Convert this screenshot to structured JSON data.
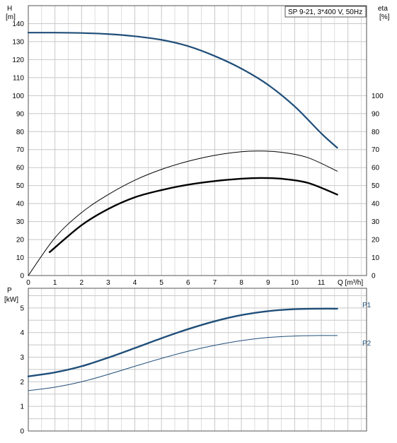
{
  "chart_data": [
    {
      "type": "line",
      "title": "SP 9-21, 3*400 V, 50Hz",
      "xlabel": "Q [m³/h]",
      "ylabel": "H\n[m]",
      "y2label": "eta\n[%]",
      "xlim": [
        0,
        12.7
      ],
      "ylim": [
        0,
        150
      ],
      "y2lim": [
        0,
        150
      ],
      "x_ticks": [
        0,
        1,
        2,
        3,
        4,
        5,
        6,
        7,
        8,
        9,
        10,
        11
      ],
      "y_ticks": [
        0,
        10,
        20,
        30,
        40,
        50,
        60,
        70,
        80,
        90,
        100,
        110,
        120,
        130,
        140
      ],
      "y2_ticks": [
        0,
        10,
        20,
        30,
        40,
        50,
        60,
        70,
        80,
        90,
        100
      ],
      "grid": true,
      "series": [
        {
          "role": "head",
          "color": "#1f4e79",
          "x": [
            0,
            1,
            2,
            3,
            4,
            5,
            6,
            7,
            8,
            9,
            10,
            11,
            11.6
          ],
          "y": [
            135,
            135,
            134.8,
            134.2,
            133,
            131,
            127.5,
            122,
            115,
            106,
            94,
            79,
            71
          ]
        },
        {
          "role": "efficiency",
          "color": "#000000",
          "x": [
            0,
            1,
            2,
            3,
            4,
            5,
            6,
            7,
            8,
            8.7,
            9.5,
            10.5,
            11.6
          ],
          "y": [
            0,
            21,
            35,
            45,
            53,
            59,
            63.5,
            66.8,
            68.8,
            69.2,
            68.5,
            65.5,
            58
          ]
        },
        {
          "role": "efficiency",
          "color": "#000000",
          "x": [
            0.8,
            2,
            3,
            4,
            5,
            6,
            7,
            8,
            8.7,
            9.5,
            10.5,
            11.6
          ],
          "y": [
            13,
            28,
            37,
            43.5,
            47.5,
            50.5,
            52.5,
            53.8,
            54.2,
            53.8,
            51.5,
            45
          ]
        }
      ]
    },
    {
      "type": "line",
      "ylabel": "P\n[kW]",
      "xlim": [
        0,
        12.7
      ],
      "ylim": [
        0,
        5.8
      ],
      "y_ticks": [
        0,
        1,
        2,
        3,
        4,
        5
      ],
      "grid": true,
      "series": [
        {
          "name": "P1",
          "color": "#1f4e79",
          "x": [
            0,
            1,
            2,
            3,
            4,
            5,
            6,
            7,
            8,
            9,
            10,
            11,
            11.6
          ],
          "y": [
            2.22,
            2.38,
            2.63,
            2.98,
            3.37,
            3.77,
            4.14,
            4.46,
            4.71,
            4.87,
            4.95,
            4.97,
            4.97
          ]
        },
        {
          "name": "P2",
          "color": "#1f4e79",
          "x": [
            0,
            1,
            2,
            3,
            4,
            5,
            6,
            7,
            8,
            9,
            10,
            11,
            11.6
          ],
          "y": [
            1.64,
            1.78,
            2.0,
            2.3,
            2.63,
            2.95,
            3.24,
            3.48,
            3.67,
            3.8,
            3.86,
            3.88,
            3.88
          ]
        }
      ]
    }
  ]
}
